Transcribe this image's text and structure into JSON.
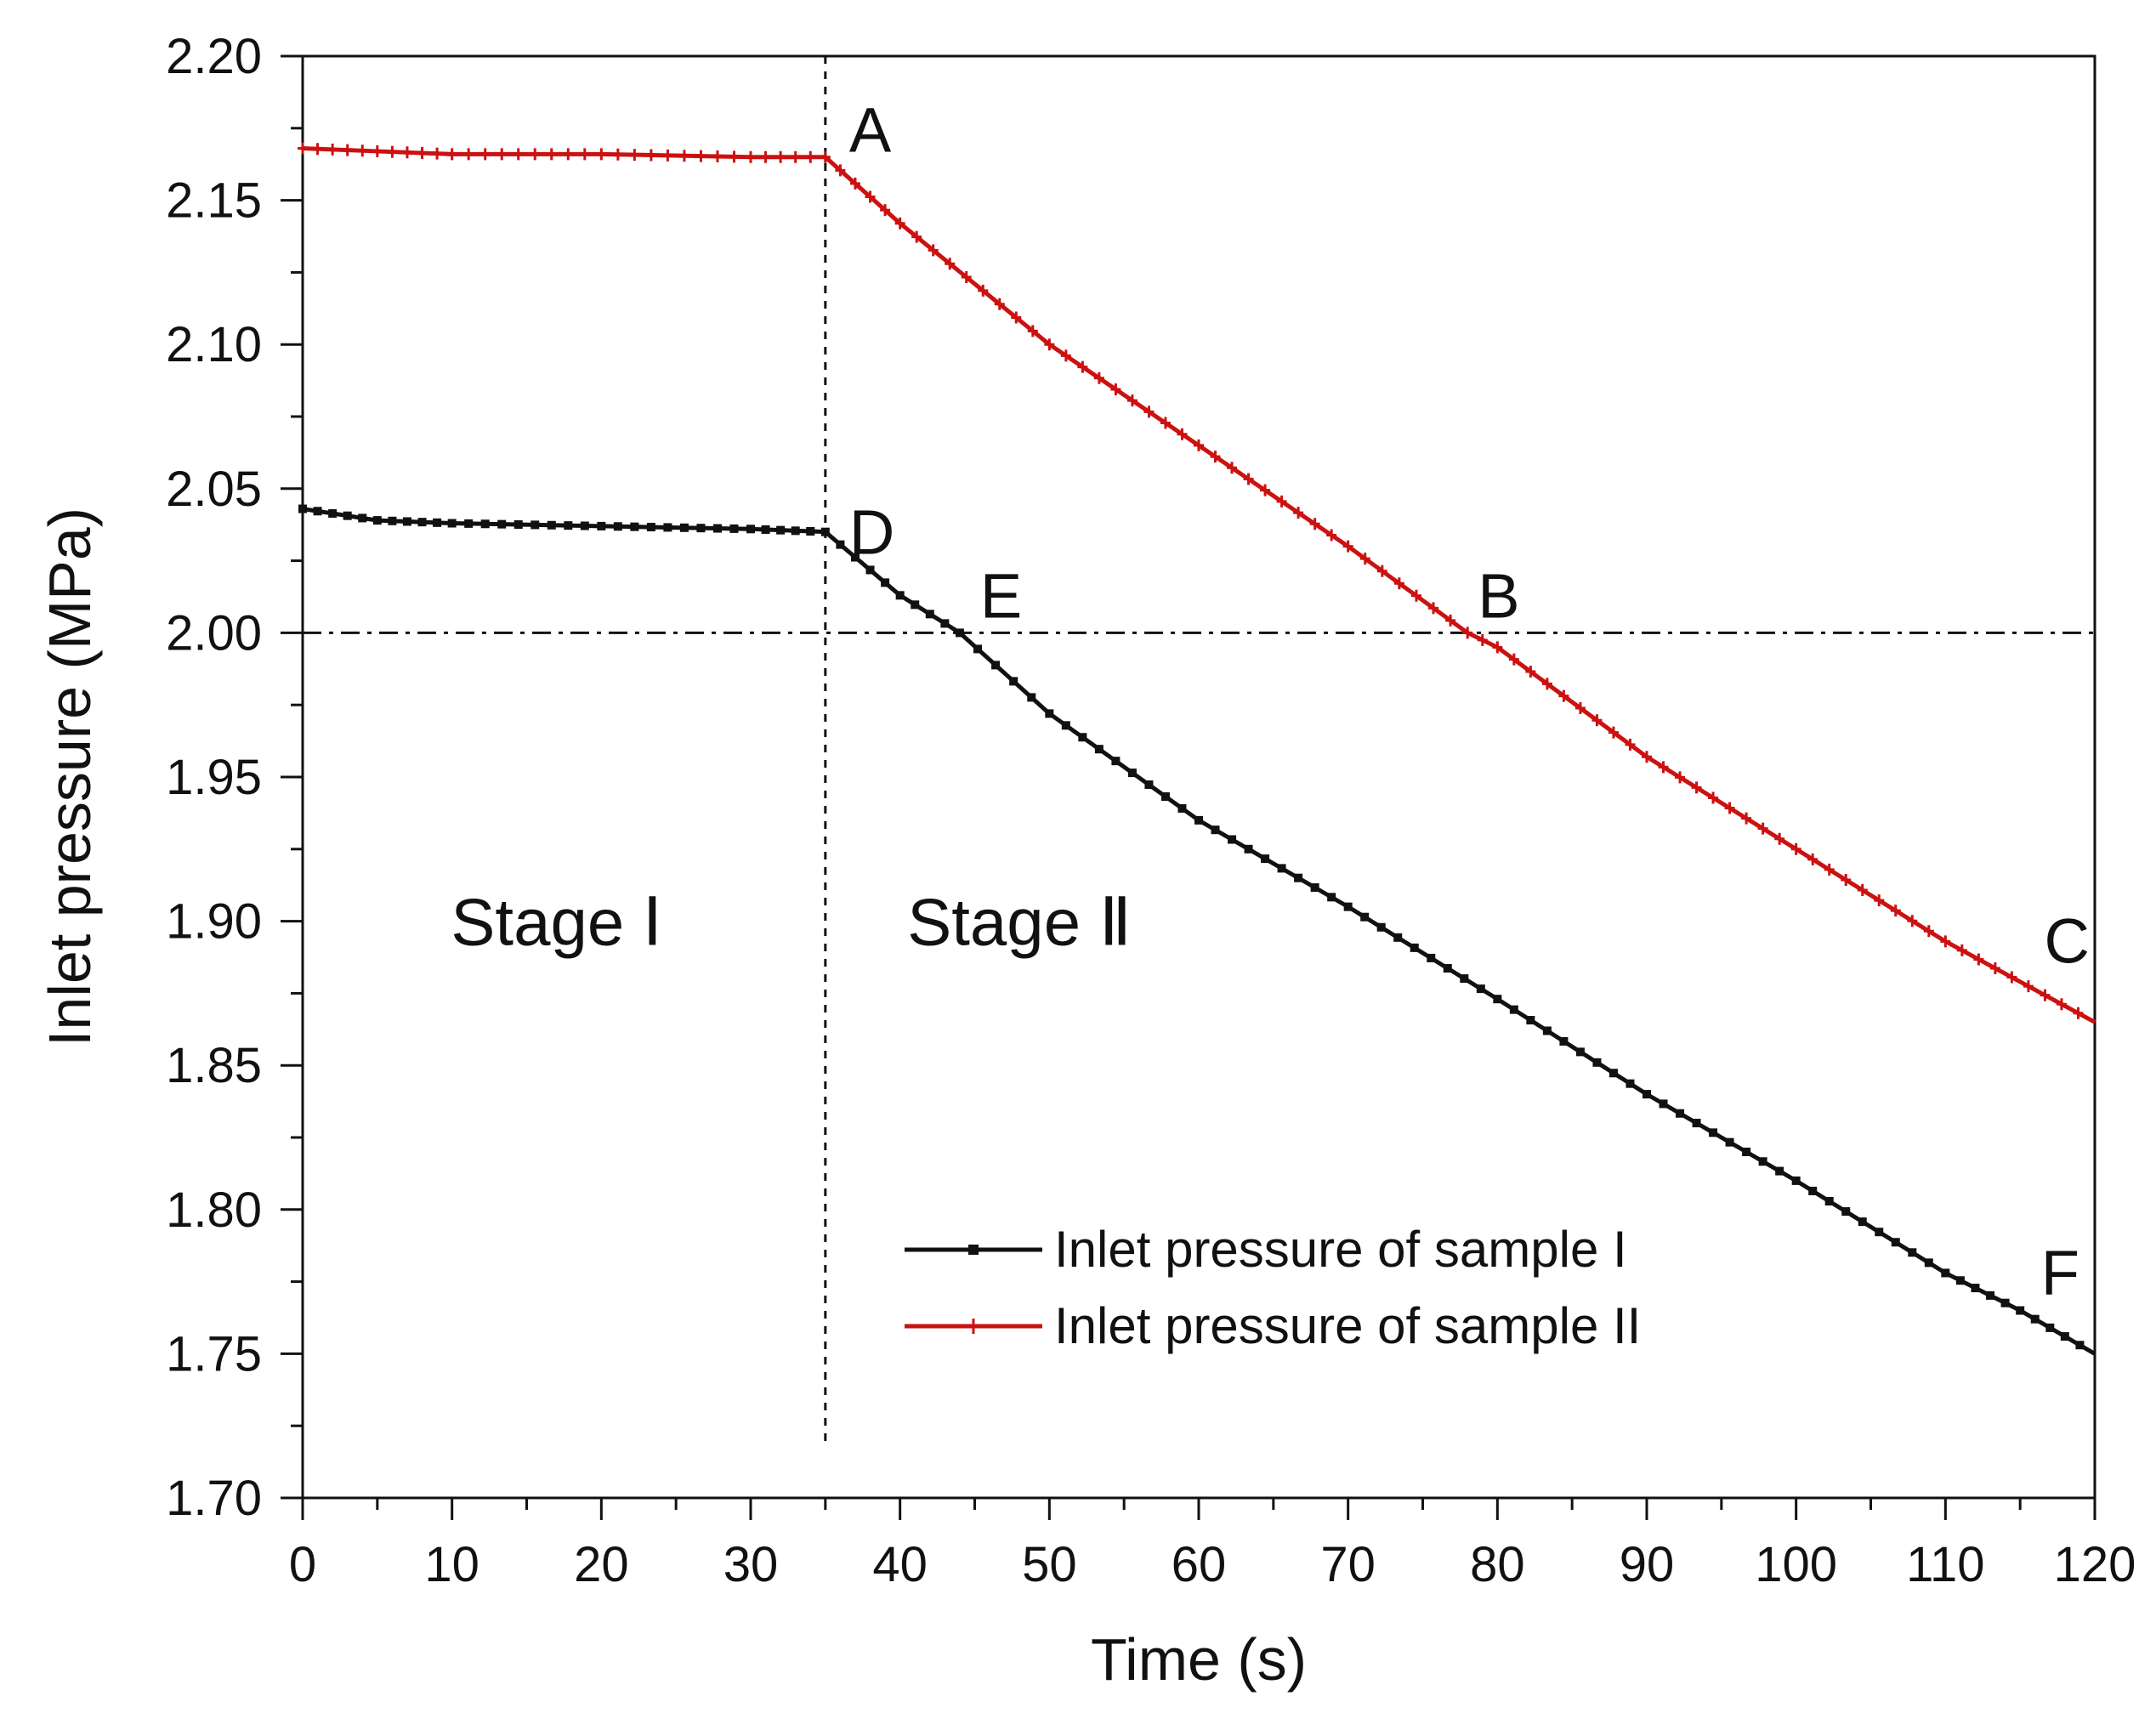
{
  "chart_data": {
    "type": "line",
    "title": "",
    "xlabel": "Time (s)",
    "ylabel": "Inlet pressure (MPa)",
    "xlim": [
      0,
      120
    ],
    "ylim": [
      1.7,
      2.2
    ],
    "xticks": [
      0,
      10,
      20,
      30,
      40,
      50,
      60,
      70,
      80,
      90,
      100,
      110,
      120
    ],
    "xtick_labels": [
      "0",
      "10",
      "20",
      "30",
      "40",
      "50",
      "60",
      "70",
      "80",
      "90",
      "100",
      "110",
      "120"
    ],
    "yticks": [
      1.7,
      1.75,
      1.8,
      1.85,
      1.9,
      1.95,
      2.0,
      2.05,
      2.1,
      2.15,
      2.2
    ],
    "ytick_labels": [
      "1.70",
      "1.75",
      "1.80",
      "1.85",
      "1.90",
      "1.95",
      "2.00",
      "2.05",
      "2.10",
      "2.15",
      "2.20"
    ],
    "grid": false,
    "legend_position": "bottom-right",
    "series": [
      {
        "name": "Inlet pressure of sample I",
        "color": "#111111",
        "x": [
          0,
          5,
          10,
          20,
          30,
          35,
          40,
          44,
          50,
          60,
          70,
          80,
          90,
          100,
          110,
          115,
          120
        ],
        "y": [
          2.043,
          2.039,
          2.038,
          2.037,
          2.036,
          2.035,
          2.013,
          2.0,
          1.972,
          1.935,
          1.905,
          1.873,
          1.84,
          1.81,
          1.778,
          1.765,
          1.75
        ]
      },
      {
        "name": "Inlet pressure of sample II",
        "color": "#cc1111",
        "x": [
          0,
          5,
          10,
          20,
          30,
          35,
          40,
          50,
          60,
          70,
          78,
          80,
          90,
          100,
          110,
          120
        ],
        "y": [
          2.168,
          2.167,
          2.166,
          2.166,
          2.165,
          2.165,
          2.142,
          2.1,
          2.065,
          2.03,
          2.0,
          1.995,
          1.957,
          1.925,
          1.893,
          1.865
        ]
      }
    ],
    "reference_lines": {
      "vertical_x": 35,
      "horizontal_y": 2.0
    },
    "annotations": [
      {
        "text": "A",
        "x": 35,
        "y": 2.165
      },
      {
        "text": "B",
        "x": 78,
        "y": 2.0
      },
      {
        "text": "C",
        "x": 120,
        "y": 1.865
      },
      {
        "text": "D",
        "x": 35,
        "y": 2.035
      },
      {
        "text": "E",
        "x": 44,
        "y": 2.0
      },
      {
        "text": "F",
        "x": 120,
        "y": 1.75
      }
    ],
    "stage_labels": [
      {
        "text": "Stage  Ⅰ",
        "x": 17,
        "y": 1.9
      },
      {
        "text": "Stage  Ⅱ",
        "x": 48,
        "y": 1.9
      }
    ]
  }
}
